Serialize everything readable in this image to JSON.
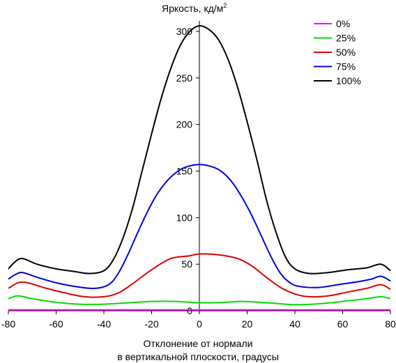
{
  "chart_data": {
    "type": "line",
    "title": "Яркость, кд/м",
    "title_superscript": "2",
    "xlabel_line1": "Отклонение от нормали",
    "xlabel_line2": "в вертикальной плоскости, градусы",
    "xlim": [
      -80,
      80
    ],
    "ylim": [
      0,
      310
    ],
    "xticks": [
      -80,
      -60,
      -40,
      -20,
      0,
      20,
      40,
      60,
      80
    ],
    "yticks": [
      0,
      50,
      100,
      150,
      200,
      250,
      300
    ],
    "grid": false,
    "legend_position": "top-right",
    "series": [
      {
        "name": "0%",
        "color": "#ff00ff",
        "points": [
          [
            -80,
            1
          ],
          [
            -40,
            1
          ],
          [
            0,
            1
          ],
          [
            40,
            1
          ],
          [
            80,
            1
          ]
        ]
      },
      {
        "name": "25%",
        "color": "#00dd00",
        "points": [
          [
            -80,
            13
          ],
          [
            -76,
            16
          ],
          [
            -70,
            13
          ],
          [
            -60,
            9
          ],
          [
            -50,
            7
          ],
          [
            -40,
            7
          ],
          [
            -30,
            8.5
          ],
          [
            -20,
            10
          ],
          [
            -10,
            10
          ],
          [
            0,
            8.5
          ],
          [
            10,
            9
          ],
          [
            18,
            10
          ],
          [
            26,
            9
          ],
          [
            34,
            7.5
          ],
          [
            40,
            6.5
          ],
          [
            50,
            7.5
          ],
          [
            60,
            10
          ],
          [
            70,
            13
          ],
          [
            76,
            15
          ],
          [
            80,
            13
          ]
        ]
      },
      {
        "name": "50%",
        "color": "#dd0000",
        "points": [
          [
            -80,
            24
          ],
          [
            -76,
            30
          ],
          [
            -72,
            30
          ],
          [
            -64,
            24
          ],
          [
            -56,
            19
          ],
          [
            -48,
            15
          ],
          [
            -40,
            15
          ],
          [
            -34,
            19
          ],
          [
            -28,
            29
          ],
          [
            -20,
            44
          ],
          [
            -12,
            56
          ],
          [
            -4,
            59
          ],
          [
            0,
            61
          ],
          [
            8,
            60
          ],
          [
            16,
            56
          ],
          [
            22,
            48
          ],
          [
            28,
            36
          ],
          [
            34,
            25
          ],
          [
            40,
            18
          ],
          [
            46,
            15
          ],
          [
            54,
            16
          ],
          [
            62,
            20
          ],
          [
            70,
            24
          ],
          [
            76,
            28
          ],
          [
            80,
            23
          ]
        ]
      },
      {
        "name": "75%",
        "color": "#0000dd",
        "points": [
          [
            -80,
            34
          ],
          [
            -77,
            39
          ],
          [
            -74,
            41
          ],
          [
            -68,
            36
          ],
          [
            -60,
            30
          ],
          [
            -52,
            26
          ],
          [
            -44,
            24
          ],
          [
            -38,
            28
          ],
          [
            -34,
            40
          ],
          [
            -30,
            60
          ],
          [
            -26,
            83
          ],
          [
            -22,
            105
          ],
          [
            -18,
            124
          ],
          [
            -14,
            138
          ],
          [
            -10,
            148
          ],
          [
            -6,
            154
          ],
          [
            0,
            157
          ],
          [
            6,
            154
          ],
          [
            10,
            148
          ],
          [
            14,
            137
          ],
          [
            18,
            121
          ],
          [
            22,
            102
          ],
          [
            26,
            80
          ],
          [
            30,
            58
          ],
          [
            34,
            40
          ],
          [
            38,
            30
          ],
          [
            42,
            26
          ],
          [
            50,
            25
          ],
          [
            58,
            28
          ],
          [
            66,
            31
          ],
          [
            72,
            34
          ],
          [
            76,
            37
          ],
          [
            80,
            32
          ]
        ]
      },
      {
        "name": "100%",
        "color": "#000000",
        "points": [
          [
            -80,
            45
          ],
          [
            -77,
            53
          ],
          [
            -74,
            56
          ],
          [
            -68,
            50
          ],
          [
            -60,
            45
          ],
          [
            -52,
            42
          ],
          [
            -46,
            40
          ],
          [
            -40,
            43
          ],
          [
            -36,
            55
          ],
          [
            -32,
            78
          ],
          [
            -28,
            110
          ],
          [
            -24,
            150
          ],
          [
            -20,
            190
          ],
          [
            -16,
            228
          ],
          [
            -12,
            260
          ],
          [
            -8,
            285
          ],
          [
            -4,
            300
          ],
          [
            0,
            306
          ],
          [
            4,
            302
          ],
          [
            8,
            291
          ],
          [
            12,
            270
          ],
          [
            16,
            240
          ],
          [
            20,
            203
          ],
          [
            24,
            163
          ],
          [
            28,
            120
          ],
          [
            32,
            85
          ],
          [
            36,
            58
          ],
          [
            40,
            45
          ],
          [
            46,
            40
          ],
          [
            54,
            41
          ],
          [
            62,
            44
          ],
          [
            70,
            46
          ],
          [
            76,
            50
          ],
          [
            80,
            43
          ]
        ]
      }
    ]
  }
}
